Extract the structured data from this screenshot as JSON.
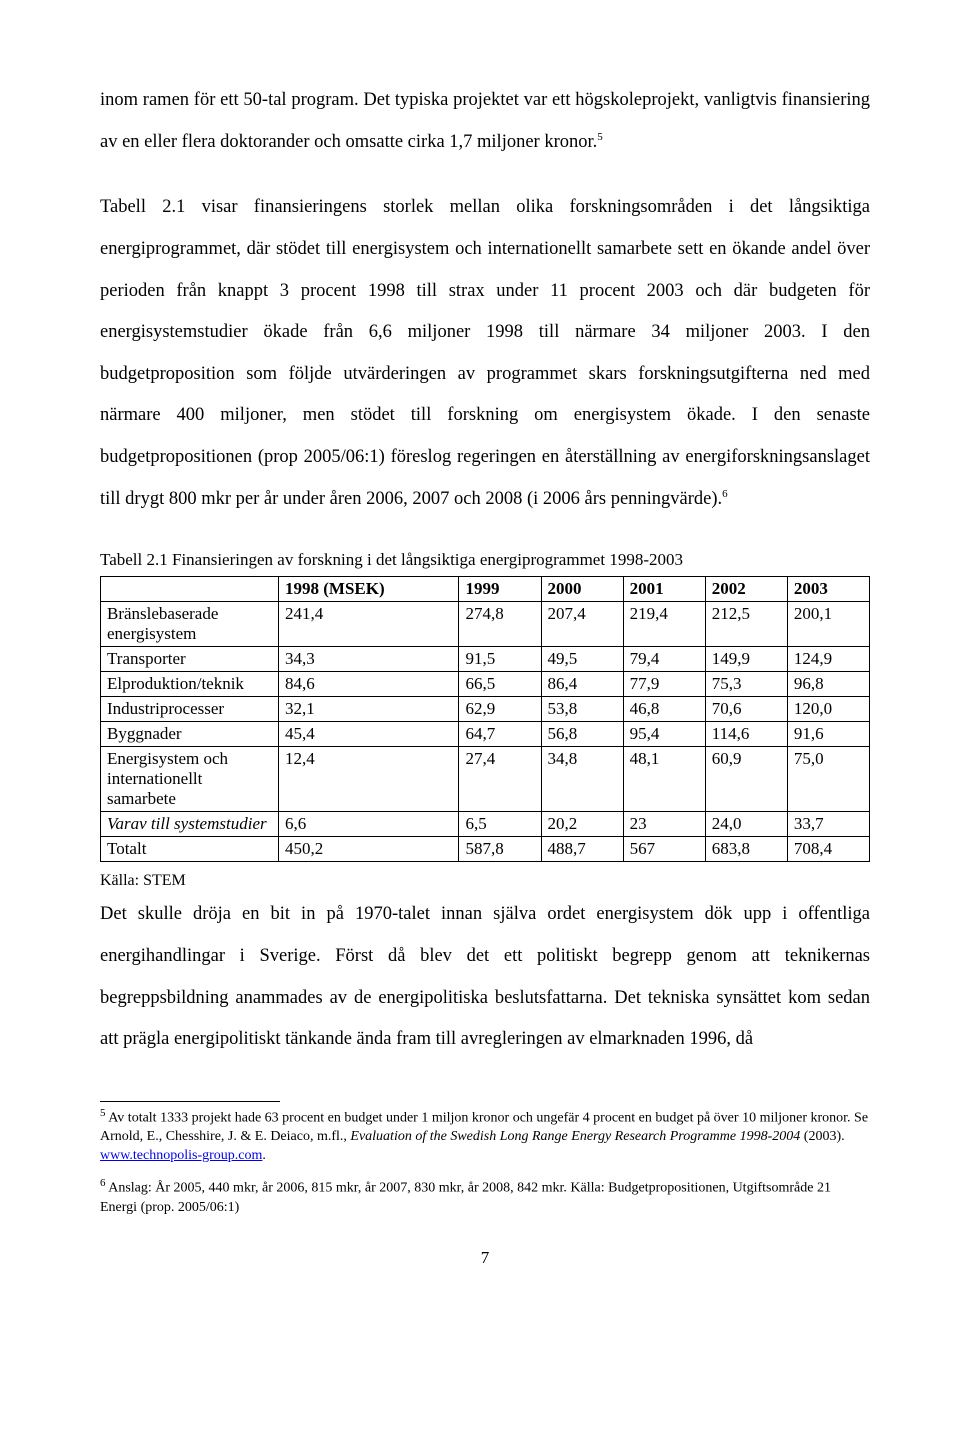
{
  "para1": "inom ramen för ett 50-tal program. Det typiska projektet var ett högskoleprojekt, vanligtvis finansiering av en eller flera doktorander och omsatte cirka 1,7 miljoner kronor.",
  "sup1": "5",
  "para2": "Tabell 2.1 visar finansieringens storlek mellan olika forskningsområden i det långsiktiga energiprogrammet, där stödet till energisystem och internationellt samarbete sett en ökande andel över perioden från knappt 3 procent 1998 till strax under 11 procent 2003 och där budgeten för energisystemstudier ökade från 6,6 miljoner 1998 till närmare 34 miljoner 2003. I den budgetproposition som följde utvärderingen av programmet skars forskningsutgifterna ned med närmare 400 miljoner, men stödet till forskning om energisystem ökade. I den senaste budgetpropositionen (prop 2005/06:1) föreslog regeringen en återställning av energiforskningsanslaget till drygt 800 mkr per år under åren 2006, 2007 och 2008 (i 2006 års penningvärde).",
  "sup2": "6",
  "table": {
    "caption": "Tabell 2.1 Finansieringen av forskning i det långsiktiga energiprogrammet 1998-2003",
    "header_label": "1998 (MSEK)",
    "years": [
      "1999",
      "2000",
      "2001",
      "2002",
      "2003"
    ],
    "rows": [
      {
        "label": "Bränslebaserade energisystem",
        "italic": false,
        "cells": [
          "241,4",
          "274,8",
          "207,4",
          "219,4",
          "212,5",
          "200,1"
        ]
      },
      {
        "label": "Transporter",
        "italic": false,
        "cells": [
          "34,3",
          "91,5",
          "49,5",
          "79,4",
          "149,9",
          "124,9"
        ]
      },
      {
        "label": "Elproduktion/teknik",
        "italic": false,
        "cells": [
          "84,6",
          "66,5",
          "86,4",
          "77,9",
          "75,3",
          "96,8"
        ]
      },
      {
        "label": "Industriprocesser",
        "italic": false,
        "cells": [
          "32,1",
          "62,9",
          "53,8",
          "46,8",
          "70,6",
          "120,0"
        ]
      },
      {
        "label": "Byggnader",
        "italic": false,
        "cells": [
          "45,4",
          "64,7",
          "56,8",
          "95,4",
          "114,6",
          "91,6"
        ]
      },
      {
        "label": "Energisystem och internationellt samarbete",
        "italic": false,
        "cells": [
          "12,4",
          "27,4",
          "34,8",
          "48,1",
          "60,9",
          "75,0"
        ]
      },
      {
        "label": "Varav till systemstudier",
        "italic": true,
        "cells": [
          "6,6",
          "6,5",
          "20,2",
          "23",
          "24,0",
          "33,7"
        ]
      },
      {
        "label": "Totalt",
        "italic": false,
        "cells": [
          "450,2",
          "587,8",
          "488,7",
          "567",
          "683,8",
          "708,4"
        ]
      }
    ]
  },
  "source": "Källa: STEM",
  "para3": "Det skulle dröja en bit in på 1970-talet innan själva ordet energisystem dök upp i offentliga energihandlingar i Sverige. Först då blev det ett politiskt begrepp genom att teknikernas begreppsbildning anammades av de energipolitiska beslutsfattarna. Det tekniska synsättet kom sedan att prägla energipolitiskt tänkande ända fram till avregleringen av elmarknaden 1996, då",
  "footnote1_sup": "5",
  "footnote1_a": " Av totalt 1333 projekt hade 63 procent en budget under 1 miljon kronor och ungefär 4 procent en budget på över 10 miljoner kronor. Se Arnold, E., Chesshire, J. & E. Deiaco, m.fl., ",
  "footnote1_i": "Evaluation of the Swedish Long Range Energy Research Programme 1998-2004",
  "footnote1_b": " (2003). ",
  "footnote1_link": "www.technopolis-group.com",
  "footnote1_c": ".",
  "footnote2_sup": "6",
  "footnote2": " Anslag: År 2005, 440 mkr, år 2006, 815 mkr, år 2007, 830 mkr, år 2008, 842 mkr. Källa: Budgetpropositionen, Utgiftsområde 21 Energi (prop. 2005/06:1)",
  "pagenum": "7"
}
